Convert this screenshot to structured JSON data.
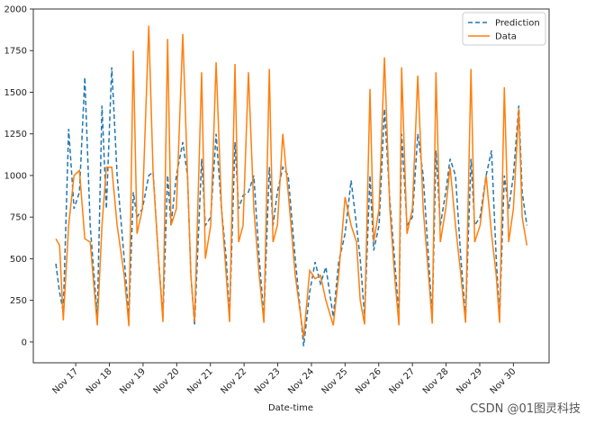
{
  "chart_data": {
    "type": "line",
    "xlabel": "Date-time",
    "annotation": "CSDN @01图灵科技",
    "legend": "upper right",
    "xlim": [
      15.74,
      31.06
    ],
    "ylim": [
      -125,
      2000
    ],
    "yticks": [
      0,
      250,
      500,
      750,
      1000,
      1250,
      1500,
      1750,
      2000
    ],
    "xticks": [
      {
        "value": 17,
        "label": "Nov 17"
      },
      {
        "value": 18,
        "label": "Nov 18"
      },
      {
        "value": 19,
        "label": "Nov 19"
      },
      {
        "value": 20,
        "label": "Nov 20"
      },
      {
        "value": 21,
        "label": "Nov 21"
      },
      {
        "value": 22,
        "label": "Nov 22"
      },
      {
        "value": 23,
        "label": "Nov 23"
      },
      {
        "value": 24,
        "label": "Nov 24"
      },
      {
        "value": 25,
        "label": "Nov 25"
      },
      {
        "value": 26,
        "label": "Nov 26"
      },
      {
        "value": 27,
        "label": "Nov 27"
      },
      {
        "value": 28,
        "label": "Nov 28"
      },
      {
        "value": 29,
        "label": "Nov 29"
      },
      {
        "value": 30,
        "label": "Nov 30"
      }
    ],
    "x": [
      16.41,
      16.52,
      16.63,
      16.79,
      16.95,
      17.11,
      17.27,
      17.43,
      17.64,
      17.78,
      17.91,
      18.07,
      18.23,
      18.44,
      18.58,
      18.71,
      18.82,
      18.98,
      19.17,
      19.3,
      19.46,
      19.59,
      19.73,
      19.83,
      19.99,
      20.18,
      20.32,
      20.42,
      20.53,
      20.74,
      20.85,
      21.01,
      21.17,
      21.33,
      21.47,
      21.57,
      21.73,
      21.84,
      21.97,
      22.13,
      22.29,
      22.45,
      22.59,
      22.75,
      22.86,
      22.99,
      23.15,
      23.31,
      23.52,
      23.77,
      23.95,
      24.11,
      24.27,
      24.43,
      24.65,
      24.81,
      25.0,
      25.18,
      25.34,
      25.45,
      25.58,
      25.74,
      25.85,
      26.01,
      26.17,
      26.33,
      26.47,
      26.6,
      26.68,
      26.84,
      27.0,
      27.16,
      27.32,
      27.48,
      27.59,
      27.7,
      27.83,
      27.99,
      28.12,
      28.28,
      28.44,
      28.58,
      28.74,
      28.85,
      29.01,
      29.19,
      29.35,
      29.49,
      29.59,
      29.73,
      29.86,
      30.0,
      30.16,
      30.26,
      30.4
    ],
    "series": [
      {
        "name": "Prediction",
        "color": "#1f77b4",
        "dash": true,
        "values": [
          470,
          300,
          180,
          1280,
          800,
          900,
          1590,
          700,
          150,
          1420,
          800,
          1650,
          1000,
          500,
          150,
          900,
          750,
          800,
          1000,
          1020,
          500,
          150,
          1000,
          700,
          1000,
          1200,
          1000,
          400,
          100,
          1100,
          700,
          750,
          1250,
          800,
          500,
          150,
          1200,
          800,
          880,
          900,
          1000,
          500,
          150,
          1050,
          700,
          900,
          1050,
          1000,
          500,
          -25,
          300,
          480,
          350,
          450,
          150,
          480,
          650,
          970,
          700,
          500,
          150,
          1000,
          550,
          700,
          1400,
          850,
          500,
          150,
          1250,
          700,
          750,
          1250,
          1000,
          500,
          150,
          1150,
          700,
          900,
          1100,
          1000,
          500,
          150,
          1100,
          700,
          750,
          1000,
          1150,
          500,
          150,
          1000,
          800,
          1000,
          1420,
          900,
          700
        ]
      },
      {
        "name": "Data",
        "color": "#ff7f0e",
        "dash": false,
        "values": [
          620,
          580,
          130,
          700,
          1000,
          1030,
          620,
          600,
          100,
          700,
          1050,
          1050,
          700,
          400,
          95,
          1750,
          650,
          800,
          1900,
          1000,
          500,
          120,
          1820,
          700,
          800,
          1850,
          1000,
          400,
          120,
          1620,
          500,
          700,
          1680,
          800,
          400,
          120,
          1670,
          600,
          700,
          1620,
          800,
          400,
          115,
          1640,
          600,
          700,
          1250,
          900,
          400,
          25,
          430,
          380,
          400,
          250,
          100,
          400,
          870,
          700,
          600,
          250,
          105,
          1520,
          600,
          800,
          1710,
          800,
          400,
          100,
          1650,
          650,
          800,
          1600,
          800,
          400,
          110,
          1620,
          600,
          800,
          1050,
          700,
          400,
          115,
          1640,
          600,
          700,
          1000,
          650,
          400,
          115,
          1530,
          600,
          800,
          1400,
          750,
          580
        ]
      }
    ]
  }
}
